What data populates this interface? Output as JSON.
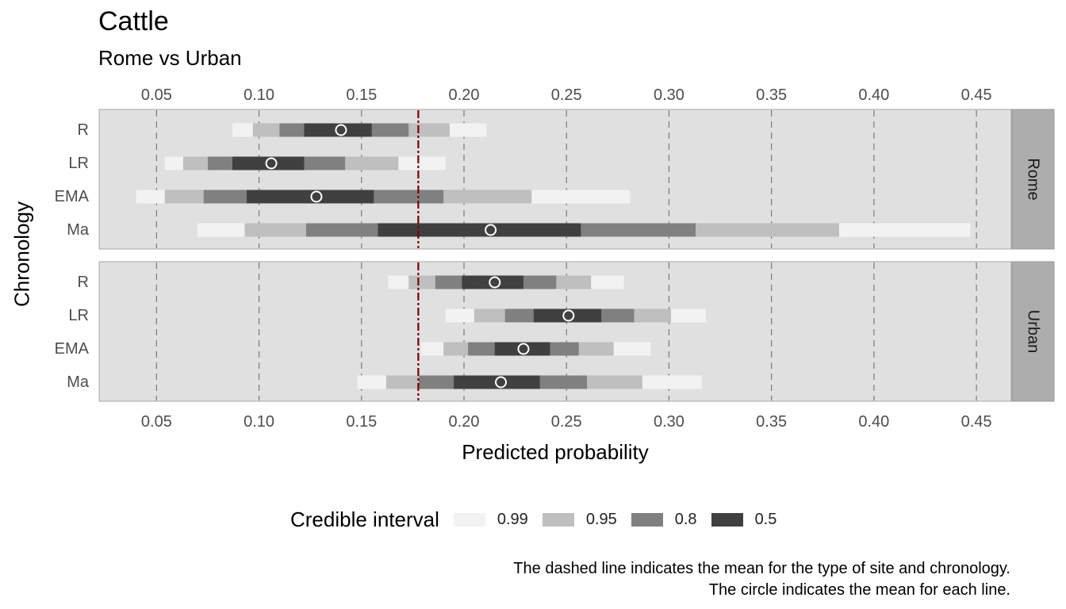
{
  "chart_data": {
    "type": "interval",
    "title": "Cattle",
    "subtitle": "Rome vs Urban",
    "xlabel": "Predicted probability",
    "ylabel": "Chronology",
    "xlim": [
      0.022,
      0.467
    ],
    "xticks": [
      0.05,
      0.1,
      0.15,
      0.2,
      0.25,
      0.3,
      0.35,
      0.4,
      0.45
    ],
    "xtick_labels": [
      "0.05",
      "0.10",
      "0.15",
      "0.20",
      "0.25",
      "0.30",
      "0.35",
      "0.40",
      "0.45"
    ],
    "reference_line": 0.1777,
    "reference_color": "#7a0000",
    "grid": "vertical dashed",
    "interval_levels": [
      "0.99",
      "0.95",
      "0.8",
      "0.5"
    ],
    "interval_colors": [
      "#f2f2f2",
      "#bfbfbf",
      "#808080",
      "#404040"
    ],
    "categories": [
      "R",
      "LR",
      "EMA",
      "Ma"
    ],
    "facets": [
      {
        "name": "Rome",
        "rows": [
          {
            "label": "R",
            "mean": 0.14,
            "i99": [
              0.087,
              0.211
            ],
            "i95": [
              0.097,
              0.193
            ],
            "i80": [
              0.11,
              0.173
            ],
            "i50": [
              0.122,
              0.155
            ]
          },
          {
            "label": "LR",
            "mean": 0.106,
            "i99": [
              0.054,
              0.191
            ],
            "i95": [
              0.063,
              0.168
            ],
            "i80": [
              0.075,
              0.142
            ],
            "i50": [
              0.087,
              0.122
            ]
          },
          {
            "label": "EMA",
            "mean": 0.128,
            "i99": [
              0.04,
              0.281
            ],
            "i95": [
              0.054,
              0.233
            ],
            "i80": [
              0.073,
              0.19
            ],
            "i50": [
              0.094,
              0.156
            ]
          },
          {
            "label": "Ma",
            "mean": 0.213,
            "i99": [
              0.07,
              0.447
            ],
            "i95": [
              0.093,
              0.383
            ],
            "i80": [
              0.123,
              0.313
            ],
            "i50": [
              0.158,
              0.257
            ]
          }
        ]
      },
      {
        "name": "Urban",
        "rows": [
          {
            "label": "R",
            "mean": 0.215,
            "i99": [
              0.163,
              0.278
            ],
            "i95": [
              0.173,
              0.262
            ],
            "i80": [
              0.186,
              0.245
            ],
            "i50": [
              0.199,
              0.229
            ]
          },
          {
            "label": "LR",
            "mean": 0.251,
            "i99": [
              0.191,
              0.318
            ],
            "i95": [
              0.205,
              0.301
            ],
            "i80": [
              0.22,
              0.283
            ],
            "i50": [
              0.234,
              0.267
            ]
          },
          {
            "label": "EMA",
            "mean": 0.229,
            "i99": [
              0.179,
              0.291
            ],
            "i95": [
              0.19,
              0.273
            ],
            "i80": [
              0.202,
              0.256
            ],
            "i50": [
              0.215,
              0.242
            ]
          },
          {
            "label": "Ma",
            "mean": 0.218,
            "i99": [
              0.148,
              0.316
            ],
            "i95": [
              0.162,
              0.287
            ],
            "i80": [
              0.178,
              0.26
            ],
            "i50": [
              0.195,
              0.237
            ]
          }
        ]
      }
    ],
    "legend": {
      "title": "Credible interval",
      "position": "bottom",
      "labels": [
        "0.99",
        "0.95",
        "0.8",
        "0.5"
      ]
    },
    "caption": [
      "The dashed line indicates the mean for the type of site and chronology.",
      "The circle indicates the mean for each line."
    ]
  }
}
